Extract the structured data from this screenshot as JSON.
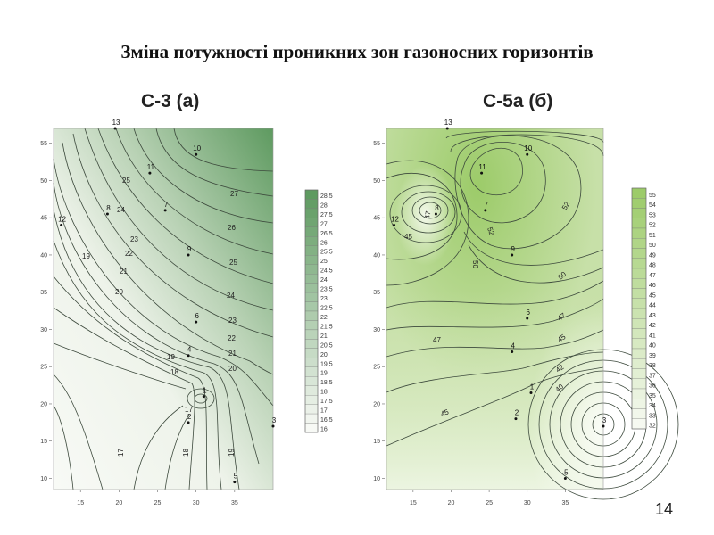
{
  "slide": {
    "title": "Зміна потужності проникних зон газоносних горизонтів",
    "page_number": "14"
  },
  "maps": [
    {
      "subtitle": "С-3 (а)",
      "x_ticks": [
        "15",
        "20",
        "25",
        "30",
        "35"
      ],
      "y_ticks": [
        "55",
        "50",
        "45",
        "40",
        "35",
        "30",
        "25",
        "20",
        "15",
        "10"
      ],
      "wells": [
        {
          "label": "13",
          "x": 19.5,
          "y": 57
        },
        {
          "label": "10",
          "x": 30,
          "y": 53.5
        },
        {
          "label": "11",
          "x": 24,
          "y": 51
        },
        {
          "label": "8",
          "x": 18.5,
          "y": 45.5
        },
        {
          "label": "7",
          "x": 26,
          "y": 46
        },
        {
          "label": "12",
          "x": 12.5,
          "y": 44
        },
        {
          "label": "9",
          "x": 29,
          "y": 40
        },
        {
          "label": "6",
          "x": 30,
          "y": 31
        },
        {
          "label": "4",
          "x": 29,
          "y": 26.5
        },
        {
          "label": "1",
          "x": 31,
          "y": 21
        },
        {
          "label": "2",
          "x": 29,
          "y": 17.5
        },
        {
          "label": "3",
          "x": 40,
          "y": 17
        },
        {
          "label": "5",
          "x": 35,
          "y": 9.5
        }
      ],
      "contour_labels": [
        "25",
        "24",
        "27",
        "23",
        "26",
        "22",
        "19",
        "21",
        "25",
        "20",
        "24",
        "23",
        "22",
        "21",
        "20",
        "19",
        "18",
        "17",
        "17",
        "18",
        "19"
      ],
      "legend": [
        "28.5",
        "28",
        "27.5",
        "27",
        "26.5",
        "26",
        "25.5",
        "25",
        "24.5",
        "24",
        "23.5",
        "23",
        "22.5",
        "22",
        "21.5",
        "21",
        "20.5",
        "20",
        "19.5",
        "19",
        "18.5",
        "18",
        "17.5",
        "17",
        "16.5",
        "16"
      ],
      "colors": {
        "low": "#f7f9f5",
        "high": "#5e9a60"
      }
    },
    {
      "subtitle": "С-5а (б)",
      "x_ticks": [
        "15",
        "20",
        "25",
        "30",
        "35"
      ],
      "y_ticks": [
        "55",
        "50",
        "45",
        "40",
        "35",
        "30",
        "25",
        "20",
        "15",
        "10"
      ],
      "wells": [
        {
          "label": "13",
          "x": 19.5,
          "y": 57
        },
        {
          "label": "10",
          "x": 30,
          "y": 53.5
        },
        {
          "label": "11",
          "x": 24,
          "y": 51
        },
        {
          "label": "8",
          "x": 18,
          "y": 45.5
        },
        {
          "label": "7",
          "x": 24.5,
          "y": 46
        },
        {
          "label": "12",
          "x": 12.5,
          "y": 44
        },
        {
          "label": "9",
          "x": 28,
          "y": 40
        },
        {
          "label": "6",
          "x": 30,
          "y": 31.5
        },
        {
          "label": "4",
          "x": 28,
          "y": 27
        },
        {
          "label": "1",
          "x": 30.5,
          "y": 21.5
        },
        {
          "label": "2",
          "x": 28.5,
          "y": 18
        },
        {
          "label": "3",
          "x": 40,
          "y": 17
        },
        {
          "label": "5",
          "x": 35,
          "y": 10
        }
      ],
      "contour_labels": [
        "47",
        "45",
        "52",
        "50",
        "52",
        "50",
        "47",
        "47",
        "45",
        "42",
        "40",
        "45"
      ],
      "legend": [
        "55",
        "54",
        "53",
        "52",
        "51",
        "50",
        "49",
        "48",
        "47",
        "46",
        "45",
        "44",
        "43",
        "42",
        "41",
        "40",
        "39",
        "38",
        "37",
        "36",
        "35",
        "34",
        "33",
        "32"
      ],
      "colors": {
        "low": "#f6f9f1",
        "high": "#9ccb69"
      }
    }
  ]
}
